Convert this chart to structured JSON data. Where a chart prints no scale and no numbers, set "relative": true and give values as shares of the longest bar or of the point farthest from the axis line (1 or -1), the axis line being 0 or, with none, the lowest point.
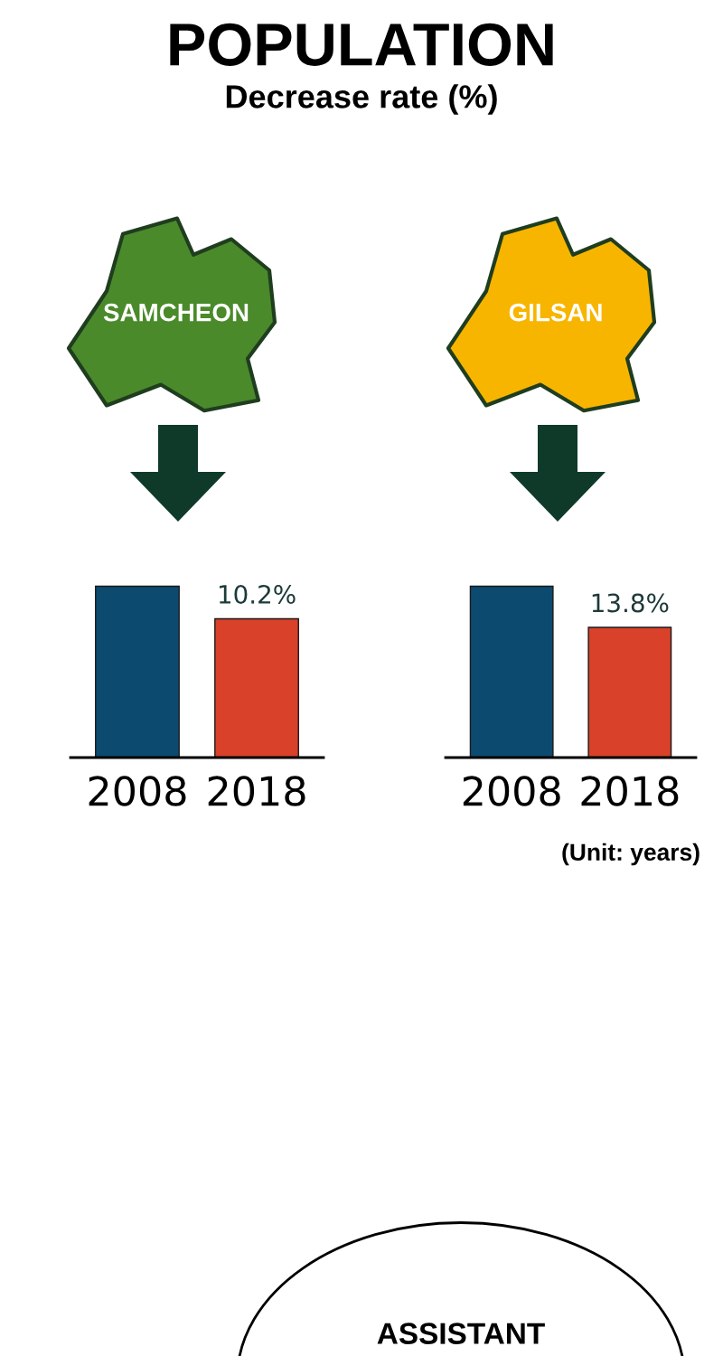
{
  "chart_data": [
    {
      "type": "other",
      "title": "POPULATION",
      "subtitle": "Decrease rate (%)",
      "annotations": [
        "ASSISTANT"
      ]
    },
    {
      "type": "bar",
      "title": "SAMCHEON",
      "relative": true,
      "categories": [
        "2008",
        "2018"
      ],
      "values": [
        1,
        0.81
      ],
      "colors": [
        "#0d4a70",
        "#d9412a"
      ],
      "annotations": [
        "10.2%"
      ]
    },
    {
      "type": "bar",
      "title": "GILSAN",
      "relative": true,
      "categories": [
        "2008",
        "2018"
      ],
      "values": [
        1,
        0.76
      ],
      "colors": [
        "#0d4a70",
        "#d9412a"
      ],
      "annotations": [
        "13.8%",
        "(Unit: years)"
      ]
    }
  ]
}
